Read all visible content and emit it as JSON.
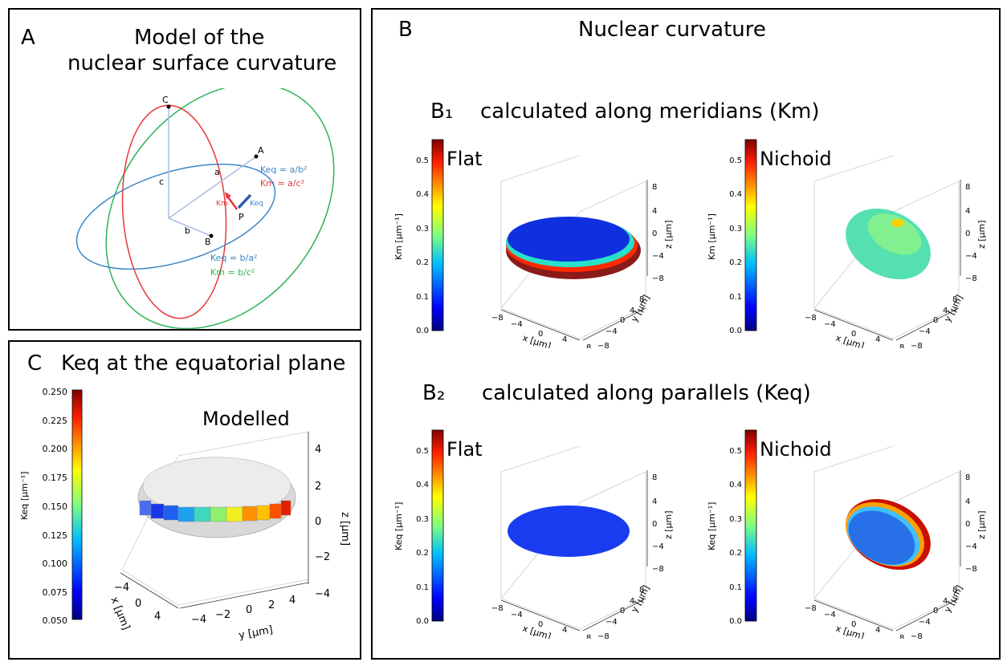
{
  "panelA": {
    "letter": "A",
    "title1": "Model of the",
    "title2": "nuclear surface curvature",
    "pt_c": "C",
    "pt_a": "A",
    "pt_b": "B",
    "pt_p": "P",
    "axis_a": "a",
    "axis_b": "b",
    "axis_c": "c",
    "eq_keq_a": "Keq = a/b²",
    "eq_km_a": "Km = a/c²",
    "eq_keq_b": "Keq = b/a²",
    "eq_km_b": "Km = b/c²",
    "vec_km": "Km",
    "vec_keq": "Keq",
    "colors": {
      "meridian_c": "#e8363a",
      "equator": "#3a86c8",
      "meridian_b": "#2fb35a"
    }
  },
  "panelB": {
    "letter": "B",
    "title": "Nuclear curvature",
    "b1_label": "B₁",
    "b1_title": "calculated along meridians (Km)",
    "b2_label": "B₂",
    "b2_title": "calculated along parallels (Keq)",
    "flat": "Flat",
    "nichoid": "Nichoid",
    "cbar_km_label": "Km [μm⁻¹]",
    "cbar_keq_label": "Keq [μm⁻¹]",
    "cbar_ticks": [
      "0.5",
      "0.4",
      "0.3",
      "0.2",
      "0.1",
      "0.0"
    ],
    "z_ticks": [
      "8",
      "4",
      "0",
      "−4",
      "−8"
    ],
    "x_ticks": [
      "−8",
      "−4",
      "0",
      "4",
      "8"
    ],
    "y_ticks": [
      "8",
      "4",
      "0",
      "−4",
      "−8"
    ],
    "xlabel": "x [μm]",
    "ylabel": "y [μm]",
    "zlabel": "z [μm]"
  },
  "panelC": {
    "letter": "C",
    "title": "Keq at the equatorial plane",
    "modelled": "Modelled",
    "cbar_label": "Keq [μm⁻¹]",
    "cbar_ticks": [
      "0.250",
      "0.225",
      "0.200",
      "0.175",
      "0.150",
      "0.125",
      "0.100",
      "0.075",
      "0.050"
    ],
    "z_ticks": [
      "4",
      "2",
      "0",
      "−2",
      "−4"
    ],
    "x_ticks": [
      "−4",
      "0",
      "4"
    ],
    "y_ticks": [
      "−4",
      "−2",
      "0",
      "2",
      "4"
    ],
    "xlabel": "x [μm]",
    "ylabel": "y [μm]",
    "zlabel": "z [μm]"
  }
}
